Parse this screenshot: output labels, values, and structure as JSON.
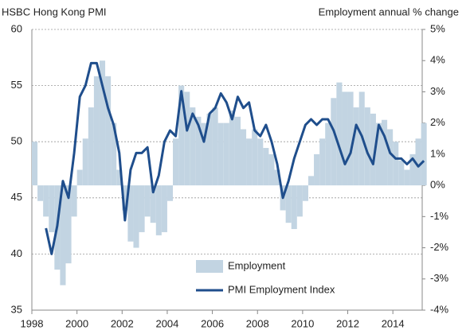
{
  "chart_data": {
    "type": "bar-line",
    "title": "HSBC Hong Kong PMI",
    "y2_label": "Employment annual  % change",
    "x": [
      1998,
      1998.25,
      1998.5,
      1998.75,
      1999,
      1999.25,
      1999.5,
      1999.75,
      2000,
      2000.25,
      2000.5,
      2000.75,
      2001,
      2001.25,
      2001.5,
      2001.75,
      2002,
      2002.25,
      2002.5,
      2002.75,
      2003,
      2003.25,
      2003.5,
      2003.75,
      2004,
      2004.25,
      2004.5,
      2004.75,
      2005,
      2005.25,
      2005.5,
      2005.75,
      2006,
      2006.25,
      2006.5,
      2006.75,
      2007,
      2007.25,
      2007.5,
      2007.75,
      2008,
      2008.25,
      2008.5,
      2008.75,
      2009,
      2009.25,
      2009.5,
      2009.75,
      2010,
      2010.25,
      2010.5,
      2010.75,
      2011,
      2011.25,
      2011.5,
      2011.75,
      2012,
      2012.25,
      2012.5,
      2012.75,
      2013,
      2013.25,
      2013.5,
      2013.75,
      2014,
      2014.25,
      2014.5,
      2014.75,
      2015,
      2015.25
    ],
    "series": [
      {
        "name": "Employment",
        "type": "bar",
        "axis": "y2",
        "color": "#c2d4e2",
        "values": [
          1.4,
          -0.5,
          -1,
          -1.5,
          -2.7,
          -3.2,
          -2.5,
          -1,
          0.5,
          1.5,
          2.5,
          3.5,
          4,
          3.5,
          2,
          0.5,
          -0.8,
          -1.8,
          -2,
          -1.5,
          -1,
          -1.2,
          -1.6,
          -1.5,
          -0.5,
          1.5,
          3.2,
          3,
          2.5,
          2.2,
          2,
          2.3,
          2.5,
          2,
          2,
          2.4,
          2.2,
          1.8,
          1.5,
          1.8,
          1.5,
          1.2,
          1,
          0.5,
          -0.8,
          -1.2,
          -1.4,
          -1,
          -0.5,
          0.3,
          1,
          1.5,
          2,
          2.8,
          3.3,
          3,
          3,
          2.5,
          3,
          2.5,
          2.3,
          2,
          2.1,
          1.8,
          1.4,
          0.8,
          0.5,
          1,
          1.5,
          2
        ]
      },
      {
        "name": "PMI Employment Index",
        "type": "line",
        "axis": "y",
        "color": "#1f4e8c",
        "values": [
          null,
          null,
          42.3,
          40,
          42.5,
          46.5,
          45,
          49,
          54,
          55,
          57,
          57,
          55,
          53,
          51.5,
          49,
          43,
          47.5,
          49,
          49,
          49.5,
          45.5,
          47,
          50,
          51,
          50.5,
          54.5,
          51,
          52.5,
          51.5,
          50,
          52.5,
          53,
          54.3,
          53.5,
          52,
          54,
          53,
          53.5,
          51,
          50.5,
          51.5,
          50,
          48,
          45,
          46.5,
          48.5,
          50,
          51.5,
          52,
          51.5,
          52,
          52,
          51,
          49.5,
          48,
          49,
          51.5,
          50.5,
          49,
          48,
          51.5,
          50.5,
          49,
          48.5,
          48.5,
          48,
          48.5,
          47.8,
          48.3
        ]
      }
    ],
    "xlim": [
      1998,
      2015.3
    ],
    "xticks": [
      1998,
      2000,
      2002,
      2004,
      2006,
      2008,
      2010,
      2012,
      2014
    ],
    "ylim": [
      35,
      60
    ],
    "yticks": [
      35,
      40,
      45,
      50,
      55,
      60
    ],
    "y2lim": [
      -4,
      5
    ],
    "y2ticks": [
      {
        "value": -4,
        "label": "-4%"
      },
      {
        "value": -3,
        "label": "-3%"
      },
      {
        "value": -2,
        "label": "-2%"
      },
      {
        "value": -1,
        "label": "-1%"
      },
      {
        "value": 0,
        "label": "0%"
      },
      {
        "value": 1,
        "label": "1%"
      },
      {
        "value": 2,
        "label": "2%"
      },
      {
        "value": 3,
        "label": "3%"
      },
      {
        "value": 4,
        "label": "4%"
      },
      {
        "value": 5,
        "label": "5%"
      }
    ],
    "grid": true
  }
}
